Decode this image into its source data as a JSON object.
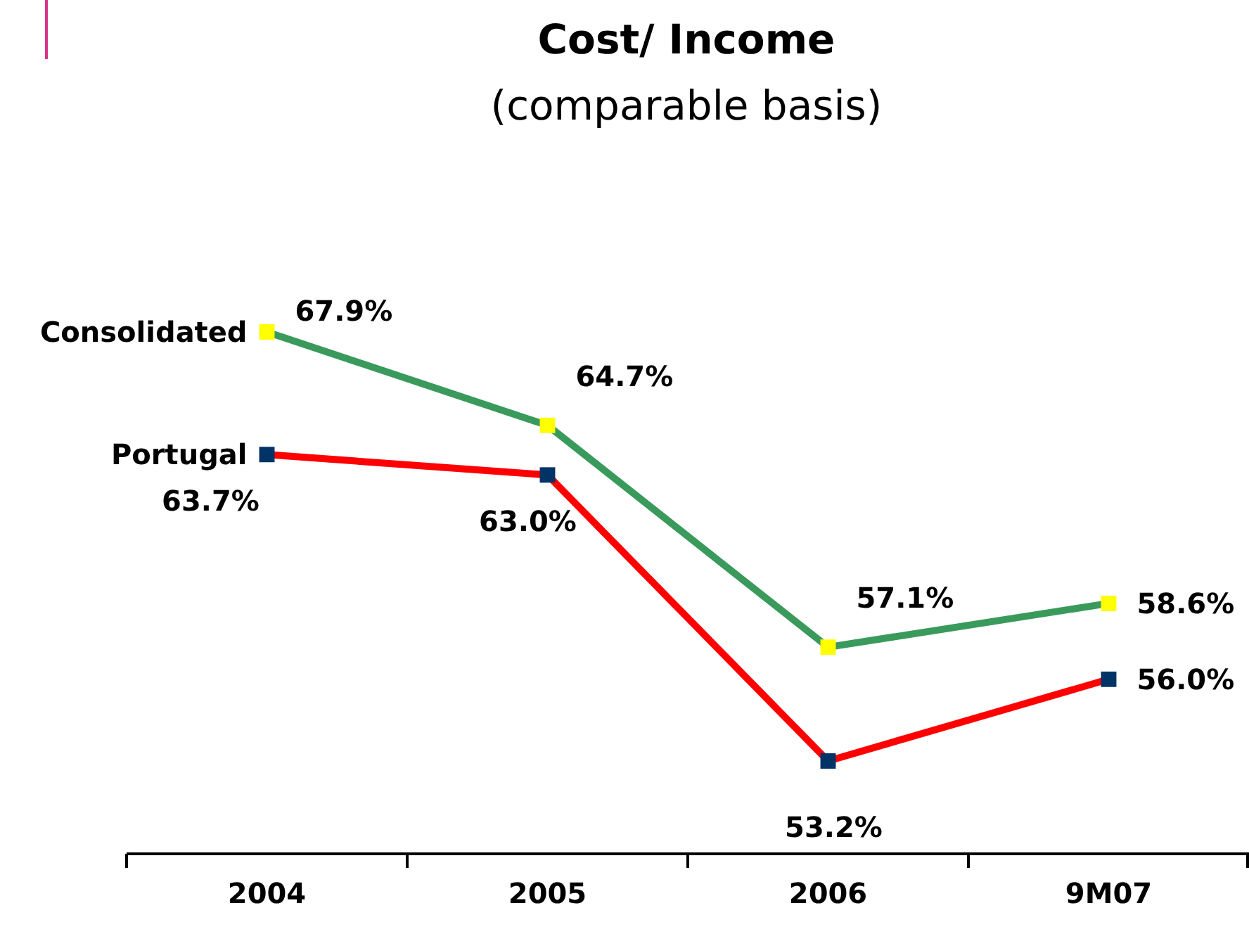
{
  "chart_data": {
    "type": "line",
    "title": "Cost/ Income",
    "subtitle": "(comparable basis)",
    "categories": [
      "2004",
      "2005",
      "2006",
      "9M07"
    ],
    "series": [
      {
        "name": "Consolidated",
        "color": "#3a9a5c",
        "colors": [
          "#ffff00",
          "#ffff00",
          "#ffff00",
          "#ffff00"
        ],
        "values": [
          67.9,
          64.7,
          57.1,
          58.6
        ],
        "value_labels": [
          "67.9%",
          "64.7%",
          "57.1%",
          "58.6%"
        ]
      },
      {
        "name": "Portugal",
        "color": "#ff0000",
        "colors": [
          "#003366",
          "#003366",
          "#003366",
          "#003366"
        ],
        "values": [
          63.7,
          63.0,
          53.2,
          56.0
        ],
        "value_labels": [
          "63.7%",
          "63.0%",
          "53.2%",
          "56.0%"
        ]
      }
    ],
    "marker": "square",
    "legend": false,
    "grid": false
  }
}
